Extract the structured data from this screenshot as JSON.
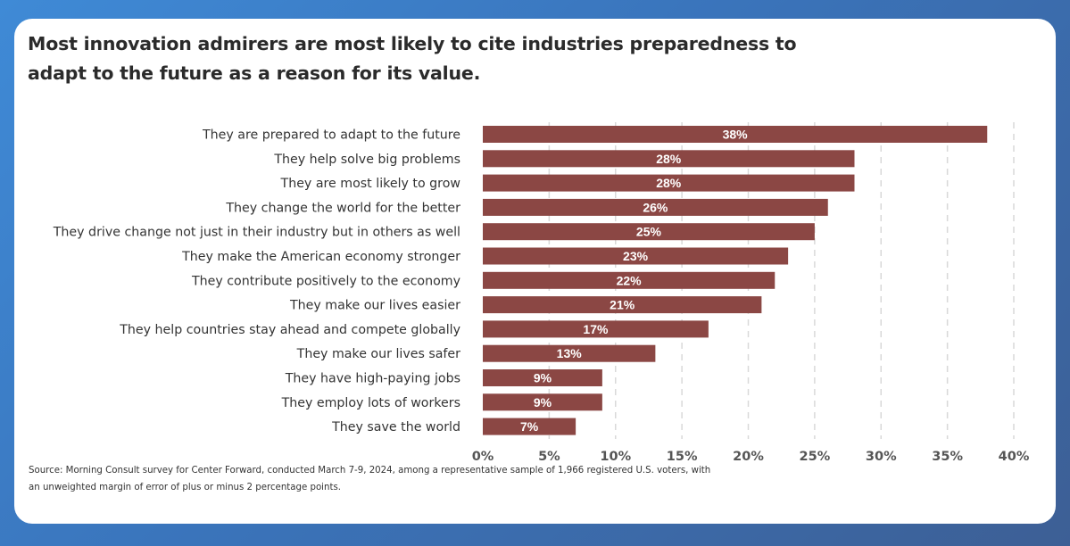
{
  "title": "Most innovation admirers are most likely to cite industries preparedness to adapt to the future as a reason for its value.",
  "source": "Source: Morning Consult survey for Center Forward, conducted March 7-9, 2024, among a representative sample of 1,966 registered U.S. voters, with an unweighted margin of error of plus or minus 2 percentage points.",
  "colors": {
    "bar": "#8b4744",
    "grid": "#d9d9d9",
    "background_start": "#3f8ad6",
    "background_end": "#3d5f95"
  },
  "chart_data": {
    "type": "bar",
    "orientation": "horizontal",
    "title": "Most innovation admirers are most likely to cite industries preparedness to adapt to the future as a reason for its value.",
    "xlabel": "",
    "ylabel": "",
    "xlim": [
      0,
      40
    ],
    "grid": "vertical dashed",
    "legend": "none",
    "value_suffix": "%",
    "categories": [
      "They are prepared to adapt to the future",
      "They help solve big problems",
      "They are most likely to grow",
      "They change the world for the better",
      "They drive change not just in their industry but in others as well",
      "They make the American economy stronger",
      "They contribute positively to the economy",
      "They make our lives easier",
      "They help countries stay ahead and compete globally",
      "They make our lives safer",
      "They have high-paying jobs",
      "They employ lots of workers",
      "They save the world"
    ],
    "values": [
      38,
      28,
      28,
      26,
      25,
      23,
      22,
      21,
      17,
      13,
      9,
      9,
      7
    ],
    "data_labels": [
      "38%",
      "28%",
      "28%",
      "26%",
      "25%",
      "23%",
      "22%",
      "21%",
      "17%",
      "13%",
      "9%",
      "9%",
      "7%"
    ],
    "ticks": [
      0,
      5,
      10,
      15,
      20,
      25,
      30,
      35,
      40
    ],
    "tick_labels": [
      "0%",
      "5%",
      "10%",
      "15%",
      "20%",
      "25%",
      "30%",
      "35%",
      "40%"
    ]
  }
}
